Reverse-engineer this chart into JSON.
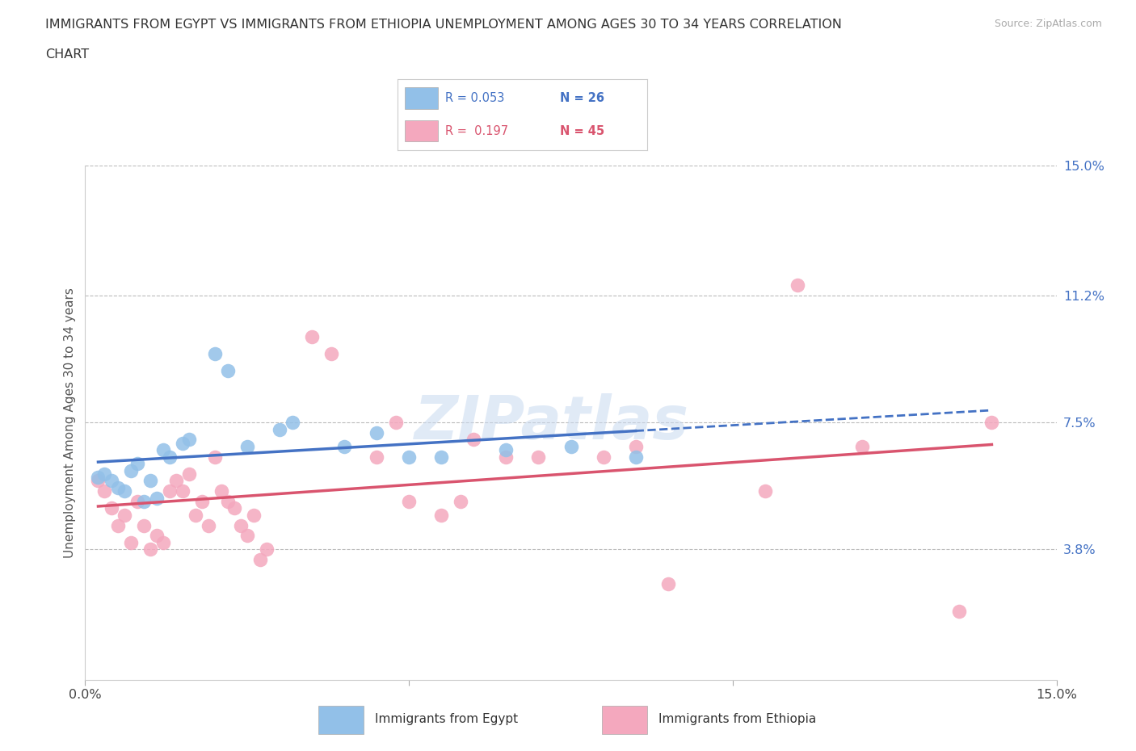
{
  "title_line1": "IMMIGRANTS FROM EGYPT VS IMMIGRANTS FROM ETHIOPIA UNEMPLOYMENT AMONG AGES 30 TO 34 YEARS CORRELATION",
  "title_line2": "CHART",
  "source": "Source: ZipAtlas.com",
  "ylabel": "Unemployment Among Ages 30 to 34 years",
  "xlim": [
    0,
    15
  ],
  "ylim": [
    0,
    15
  ],
  "ytick_positions": [
    3.8,
    7.5,
    11.2,
    15.0
  ],
  "ytick_labels": [
    "3.8%",
    "7.5%",
    "11.2%",
    "15.0%"
  ],
  "egypt_color": "#92c0e8",
  "ethiopia_color": "#f4a8be",
  "egypt_line_color": "#4472c4",
  "ethiopia_line_color": "#d9546e",
  "legend_egypt_label": "Immigrants from Egypt",
  "legend_ethiopia_label": "Immigrants from Ethiopia",
  "background_color": "#ffffff",
  "grid_color": "#bbbbbb",
  "watermark_color": "#c8daf0",
  "egypt_points": [
    [
      0.2,
      5.9
    ],
    [
      0.3,
      6.0
    ],
    [
      0.4,
      5.8
    ],
    [
      0.5,
      5.6
    ],
    [
      0.6,
      5.5
    ],
    [
      0.7,
      6.1
    ],
    [
      0.8,
      6.3
    ],
    [
      0.9,
      5.2
    ],
    [
      1.0,
      5.8
    ],
    [
      1.1,
      5.3
    ],
    [
      1.2,
      6.7
    ],
    [
      1.3,
      6.5
    ],
    [
      1.5,
      6.9
    ],
    [
      1.6,
      7.0
    ],
    [
      2.0,
      9.5
    ],
    [
      2.2,
      9.0
    ],
    [
      2.5,
      6.8
    ],
    [
      3.0,
      7.3
    ],
    [
      3.2,
      7.5
    ],
    [
      4.0,
      6.8
    ],
    [
      4.5,
      7.2
    ],
    [
      5.0,
      6.5
    ],
    [
      5.5,
      6.5
    ],
    [
      6.5,
      6.7
    ],
    [
      7.5,
      6.8
    ],
    [
      8.5,
      6.5
    ]
  ],
  "ethiopia_points": [
    [
      0.2,
      5.8
    ],
    [
      0.3,
      5.5
    ],
    [
      0.4,
      5.0
    ],
    [
      0.5,
      4.5
    ],
    [
      0.6,
      4.8
    ],
    [
      0.7,
      4.0
    ],
    [
      0.8,
      5.2
    ],
    [
      0.9,
      4.5
    ],
    [
      1.0,
      3.8
    ],
    [
      1.1,
      4.2
    ],
    [
      1.2,
      4.0
    ],
    [
      1.3,
      5.5
    ],
    [
      1.4,
      5.8
    ],
    [
      1.5,
      5.5
    ],
    [
      1.6,
      6.0
    ],
    [
      1.7,
      4.8
    ],
    [
      1.8,
      5.2
    ],
    [
      1.9,
      4.5
    ],
    [
      2.0,
      6.5
    ],
    [
      2.1,
      5.5
    ],
    [
      2.2,
      5.2
    ],
    [
      2.3,
      5.0
    ],
    [
      2.4,
      4.5
    ],
    [
      2.5,
      4.2
    ],
    [
      2.6,
      4.8
    ],
    [
      2.7,
      3.5
    ],
    [
      2.8,
      3.8
    ],
    [
      3.5,
      10.0
    ],
    [
      3.8,
      9.5
    ],
    [
      4.5,
      6.5
    ],
    [
      4.8,
      7.5
    ],
    [
      5.0,
      5.2
    ],
    [
      5.5,
      4.8
    ],
    [
      5.8,
      5.2
    ],
    [
      6.0,
      7.0
    ],
    [
      6.5,
      6.5
    ],
    [
      7.0,
      6.5
    ],
    [
      8.0,
      6.5
    ],
    [
      8.5,
      6.8
    ],
    [
      9.0,
      2.8
    ],
    [
      10.5,
      5.5
    ],
    [
      11.0,
      11.5
    ],
    [
      12.0,
      6.8
    ],
    [
      13.5,
      2.0
    ],
    [
      14.0,
      7.5
    ]
  ]
}
